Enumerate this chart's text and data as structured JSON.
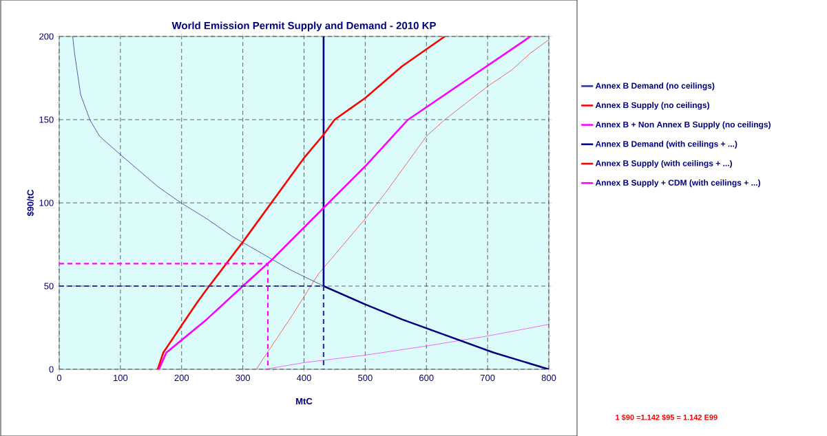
{
  "chart_data": {
    "type": "line",
    "title": "World Emission Permit Supply and Demand - 2010 KP",
    "xlabel": "MtC",
    "ylabel": "$90/tC",
    "xlim": [
      0,
      800
    ],
    "ylim": [
      0,
      200
    ],
    "xticks": [
      0,
      100,
      200,
      300,
      400,
      500,
      600,
      700,
      800
    ],
    "yticks": [
      0,
      50,
      100,
      150,
      200
    ],
    "grid": true,
    "legend": "right",
    "marker": "none",
    "annotations": [
      "1 $90 =1.142 $95 = 1.142 E99"
    ],
    "series": [
      {
        "name": "Annex B Demand (no ceilings)",
        "color": "#333399",
        "line_style": "solid",
        "x": [
          22,
          25,
          35,
          50,
          66,
          100,
          162,
          199,
          241,
          282,
          379,
          432
        ],
        "values": [
          200,
          190,
          165,
          150,
          140,
          129,
          109.5,
          100,
          90.5,
          80,
          59.5,
          50
        ]
      },
      {
        "name": "Annex B Supply (no ceilings)",
        "color": "#ff0000",
        "line_style": "solid",
        "x": [
          322,
          340,
          380,
          423,
          499,
          533,
          600,
          630,
          700,
          740,
          770,
          800
        ],
        "values": [
          0,
          10,
          32,
          57,
          90,
          106,
          140,
          150,
          170,
          180,
          190,
          198
        ]
      },
      {
        "name": "Annex B + Non Annex B Supply (no ceilings)",
        "color": "#ff00ff",
        "line_style": "solid",
        "x": [
          336,
          400,
          500,
          600,
          700,
          800
        ],
        "values": [
          0,
          4,
          8.5,
          14,
          20,
          27
        ]
      },
      {
        "name": "Annex B Demand (with ceilings + ...)",
        "color": "#000080",
        "line_style": "solid",
        "x": [
          432,
          432,
          500,
          560,
          710,
          800
        ],
        "values": [
          200,
          50,
          39,
          30,
          10,
          0
        ]
      },
      {
        "name": "Annex B Supply (with ceilings + ...)",
        "color": "#ff0000",
        "line_style": "solid",
        "x": [
          161,
          170,
          225,
          241,
          300,
          400,
          432,
          450,
          500,
          560,
          630
        ],
        "values": [
          0,
          10,
          40,
          48,
          76.5,
          127,
          141,
          150,
          163,
          182,
          200
        ]
      },
      {
        "name": "Annex B Supply + CDM (with ceilings + ...)",
        "color": "#ff00ff",
        "line_style": "solid",
        "x": [
          163,
          175,
          241,
          300,
          348,
          432,
          500,
          545,
          570,
          770
        ],
        "values": [
          0,
          10,
          30,
          50,
          66,
          97,
          122,
          140,
          150,
          200
        ]
      },
      {
        "color": "#333399",
        "line_style": "dashed",
        "x": [
          0,
          432,
          432
        ],
        "values": [
          50,
          50,
          0
        ]
      },
      {
        "color": "#ff00ff",
        "line_style": "dashed",
        "x": [
          0,
          341,
          341
        ],
        "values": [
          63.5,
          63.5,
          0
        ]
      }
    ]
  }
}
